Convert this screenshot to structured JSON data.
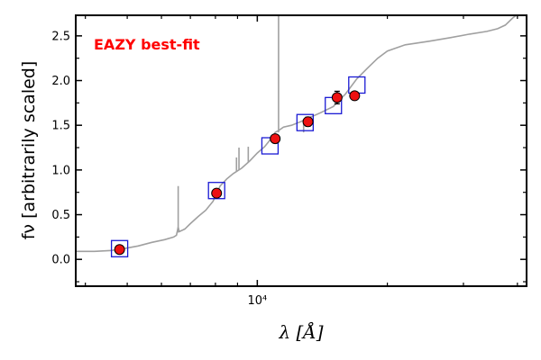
{
  "chart_data": {
    "type": "scatter",
    "xscale": "log",
    "xlim": [
      3800,
      42000
    ],
    "ylim": [
      -0.3,
      2.73
    ],
    "xlabel": "λ [Å]",
    "ylabel": "fν [arbitrarily scaled]",
    "x_ticks": [
      {
        "value": 10000,
        "label": "10⁴"
      }
    ],
    "y_ticks": [
      {
        "value": 0.0,
        "label": "0.0"
      },
      {
        "value": 0.5,
        "label": "0.5"
      },
      {
        "value": 1.0,
        "label": "1.0"
      },
      {
        "value": 1.5,
        "label": "1.5"
      },
      {
        "value": 2.0,
        "label": "2.0"
      },
      {
        "value": 2.5,
        "label": "2.5"
      }
    ],
    "annotation": {
      "text": "EAZY best-fit",
      "color": "#ff0000"
    },
    "colors": {
      "model": "#a0a0a0",
      "observed": "#ee1111",
      "model_photometry": "#1a1ad4"
    },
    "observed_points": [
      {
        "x": 4800,
        "y": 0.11,
        "err": 0.02
      },
      {
        "x": 8050,
        "y": 0.74,
        "err": 0.02
      },
      {
        "x": 11000,
        "y": 1.35,
        "err": 0.04
      },
      {
        "x": 13100,
        "y": 1.54,
        "err": 0.05
      },
      {
        "x": 15300,
        "y": 1.81,
        "err": 0.07
      },
      {
        "x": 16800,
        "y": 1.83,
        "err": 0.03
      }
    ],
    "model_points": [
      {
        "x": 4800,
        "y": 0.12
      },
      {
        "x": 8050,
        "y": 0.77
      },
      {
        "x": 10700,
        "y": 1.27
      },
      {
        "x": 12900,
        "y": 1.53
      },
      {
        "x": 15000,
        "y": 1.72
      },
      {
        "x": 17000,
        "y": 1.95
      }
    ],
    "model_sed": [
      [
        3800,
        0.09
      ],
      [
        4200,
        0.09
      ],
      [
        4600,
        0.1
      ],
      [
        4900,
        0.12
      ],
      [
        5300,
        0.15
      ],
      [
        5700,
        0.19
      ],
      [
        6100,
        0.22
      ],
      [
        6400,
        0.25
      ],
      [
        6500,
        0.27
      ],
      [
        6560,
        0.36
      ],
      [
        6600,
        0.31
      ],
      [
        6800,
        0.34
      ],
      [
        7000,
        0.4
      ],
      [
        7300,
        0.48
      ],
      [
        7600,
        0.55
      ],
      [
        7900,
        0.65
      ],
      [
        8200,
        0.82
      ],
      [
        8500,
        0.9
      ],
      [
        8800,
        0.96
      ],
      [
        9200,
        1.02
      ],
      [
        9600,
        1.1
      ],
      [
        10000,
        1.19
      ],
      [
        10400,
        1.26
      ],
      [
        10800,
        1.36
      ],
      [
        11000,
        1.42
      ],
      [
        11200,
        1.44
      ],
      [
        11500,
        1.48
      ],
      [
        12000,
        1.5
      ],
      [
        12600,
        1.54
      ],
      [
        13000,
        1.57
      ],
      [
        14000,
        1.64
      ],
      [
        15000,
        1.71
      ],
      [
        16000,
        1.85
      ],
      [
        17000,
        2.02
      ],
      [
        18000,
        2.14
      ],
      [
        19000,
        2.25
      ],
      [
        20000,
        2.33
      ],
      [
        22000,
        2.4
      ],
      [
        25000,
        2.44
      ],
      [
        28000,
        2.48
      ],
      [
        31000,
        2.52
      ],
      [
        34000,
        2.55
      ],
      [
        36000,
        2.58
      ],
      [
        37500,
        2.62
      ],
      [
        39000,
        2.7
      ],
      [
        40500,
        2.76
      ]
    ],
    "model_lines": [
      {
        "x": 6560,
        "y_base": 0.3,
        "y_peak": 0.82
      },
      {
        "x": 8950,
        "y_base": 0.98,
        "y_peak": 1.14
      },
      {
        "x": 9070,
        "y_base": 1.0,
        "y_peak": 1.25
      },
      {
        "x": 9530,
        "y_base": 1.09,
        "y_peak": 1.26
      },
      {
        "x": 11200,
        "y_base": 1.42,
        "y_peak": 2.9
      },
      {
        "x": 12800,
        "y_base": 1.55,
        "y_peak": 1.42
      }
    ]
  }
}
